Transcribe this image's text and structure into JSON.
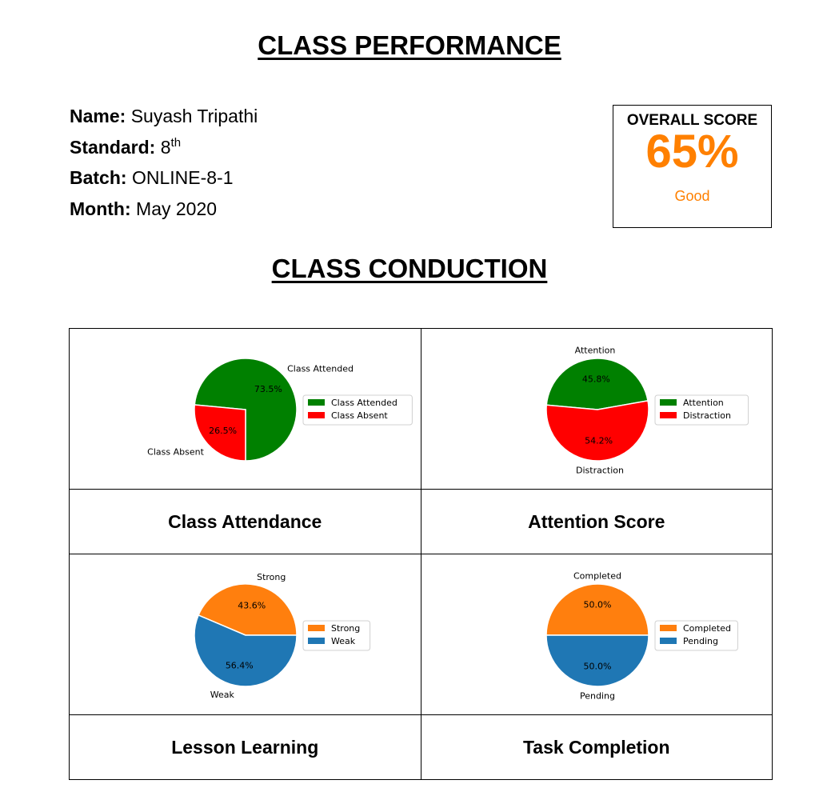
{
  "report": {
    "title": "CLASS PERFORMANCE",
    "section_title": "CLASS CONDUCTION"
  },
  "student": {
    "name_label": "Name:",
    "name": "Suyash Tripathi",
    "standard_label": "Standard:",
    "standard": "8",
    "standard_suffix": "th",
    "batch_label": "Batch:",
    "batch": "ONLINE-8-1",
    "month_label": "Month:",
    "month": "May 2020"
  },
  "overall": {
    "label": "OVERALL SCORE",
    "value": "65%",
    "grade": "Good",
    "color": "#ff8000"
  },
  "chart_data": [
    {
      "type": "pie",
      "caption": "Class Attendance",
      "labels": [
        "Class Attended",
        "Class Absent"
      ],
      "values": [
        73.5,
        26.5
      ],
      "pct_labels": [
        "73.5%",
        "26.5%"
      ],
      "colors": [
        "#008000",
        "#ff0000"
      ],
      "legend": [
        "Class Attended",
        "Class Absent"
      ],
      "legend_position": "right"
    },
    {
      "type": "pie",
      "caption": "Attention Score",
      "labels": [
        "Attention",
        "Distraction"
      ],
      "values": [
        45.8,
        54.2
      ],
      "pct_labels": [
        "45.8%",
        "54.2%"
      ],
      "colors": [
        "#008000",
        "#ff0000"
      ],
      "legend": [
        "Attention",
        "Distraction"
      ],
      "legend_position": "right"
    },
    {
      "type": "pie",
      "caption": "Lesson Learning",
      "labels": [
        "Strong",
        "Weak"
      ],
      "values": [
        43.6,
        56.4
      ],
      "pct_labels": [
        "43.6%",
        "56.4%"
      ],
      "colors": [
        "#ff7f0e",
        "#1f77b4"
      ],
      "legend": [
        "Strong",
        "Weak"
      ],
      "legend_position": "right"
    },
    {
      "type": "pie",
      "caption": "Task Completion",
      "labels": [
        "Completed",
        "Pending"
      ],
      "values": [
        50.0,
        50.0
      ],
      "pct_labels": [
        "50.0%",
        "50.0%"
      ],
      "colors": [
        "#ff7f0e",
        "#1f77b4"
      ],
      "legend": [
        "Completed",
        "Pending"
      ],
      "legend_position": "right"
    }
  ]
}
